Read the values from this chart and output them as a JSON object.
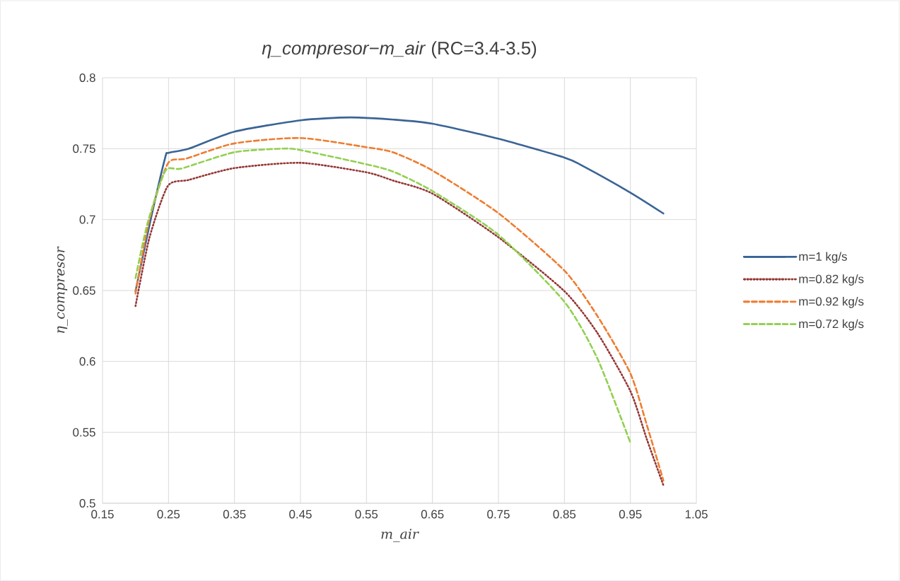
{
  "chart_data": {
    "type": "line",
    "title": "*η_compresor−m_air* (RC=3.4-3.5)",
    "xlabel": "m_air",
    "ylabel": "η_compresor",
    "xlim": [
      0.15,
      1.05
    ],
    "xticks": [
      0.15,
      0.25,
      0.35,
      0.45,
      0.55,
      0.65,
      0.75,
      0.85,
      0.95,
      1.05
    ],
    "ylim": [
      0.5,
      0.8
    ],
    "yticks": [
      0.5,
      0.55,
      0.6,
      0.65,
      0.7,
      0.75,
      0.8
    ],
    "grid": true,
    "legend": "right",
    "marker": "none",
    "series": [
      {
        "name": "m=1 kg/s",
        "color": "#3a6496",
        "line_style": "solid",
        "x": [
          0.2,
          0.223,
          0.245,
          0.25,
          0.281,
          0.35,
          0.45,
          0.525,
          0.591,
          0.65,
          0.75,
          0.85,
          0.877,
          0.95,
          1.0
        ],
        "values": [
          0.6495,
          0.7,
          0.7437,
          0.747,
          0.75,
          0.762,
          0.77,
          0.772,
          0.7705,
          0.7676,
          0.757,
          0.7437,
          0.738,
          0.719,
          0.7043
        ]
      },
      {
        "name": "m=0.82 kg/s",
        "color": "#943634",
        "line_style": "dotted",
        "x": [
          0.2,
          0.221,
          0.249,
          0.281,
          0.35,
          0.45,
          0.55,
          0.591,
          0.65,
          0.75,
          0.85,
          0.9,
          0.95,
          0.975,
          1.0
        ],
        "values": [
          0.639,
          0.687,
          0.7237,
          0.728,
          0.7363,
          0.74,
          0.7333,
          0.7274,
          0.7183,
          0.6875,
          0.6495,
          0.62,
          0.579,
          0.545,
          0.5127
        ]
      },
      {
        "name": "m=0.92 kg/s",
        "color": "#ed7d31",
        "line_style": "dashed",
        "x": [
          0.2,
          0.221,
          0.249,
          0.277,
          0.35,
          0.45,
          0.55,
          0.591,
          0.65,
          0.75,
          0.85,
          0.9,
          0.95,
          0.975,
          1.0
        ],
        "values": [
          0.6478,
          0.7,
          0.7395,
          0.743,
          0.7537,
          0.7575,
          0.751,
          0.7473,
          0.7346,
          0.7045,
          0.664,
          0.632,
          0.5915,
          0.555,
          0.516
        ]
      },
      {
        "name": "m=0.72 kg/s",
        "color": "#92d050",
        "line_style": "dashed",
        "x": [
          0.2,
          0.218,
          0.245,
          0.27,
          0.35,
          0.423,
          0.45,
          0.55,
          0.591,
          0.65,
          0.75,
          0.85,
          0.9,
          0.95
        ],
        "values": [
          0.6587,
          0.697,
          0.7342,
          0.736,
          0.7475,
          0.75,
          0.749,
          0.739,
          0.7337,
          0.7201,
          0.6893,
          0.642,
          0.602,
          0.5426
        ]
      }
    ]
  }
}
